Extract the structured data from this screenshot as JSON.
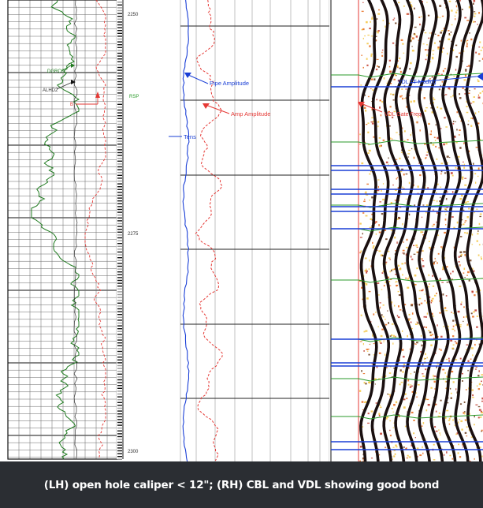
{
  "depth_ticks": [
    "2250",
    "2275",
    "2300"
  ],
  "track1_labels": [
    "DGRCC",
    "ALHD2",
    "B"
  ],
  "rsp_label": "RSP",
  "cbl_labels": {
    "pipe": "Pipe Amplitude",
    "amp": "Amp Amplitude",
    "tens": "Tens"
  },
  "vdl_labels": [
    "VDL TT Mudlog",
    "VDL Gate Freq"
  ],
  "caption": "(LH) open hole caliper < 12\"; (RH) CBL and VDL showing good bond",
  "colors": {
    "gr": "#1e7a1e",
    "caliper": "#e53935",
    "cbl_blue": "#1a3fd6",
    "caption_bg": "#2b2e33"
  }
}
